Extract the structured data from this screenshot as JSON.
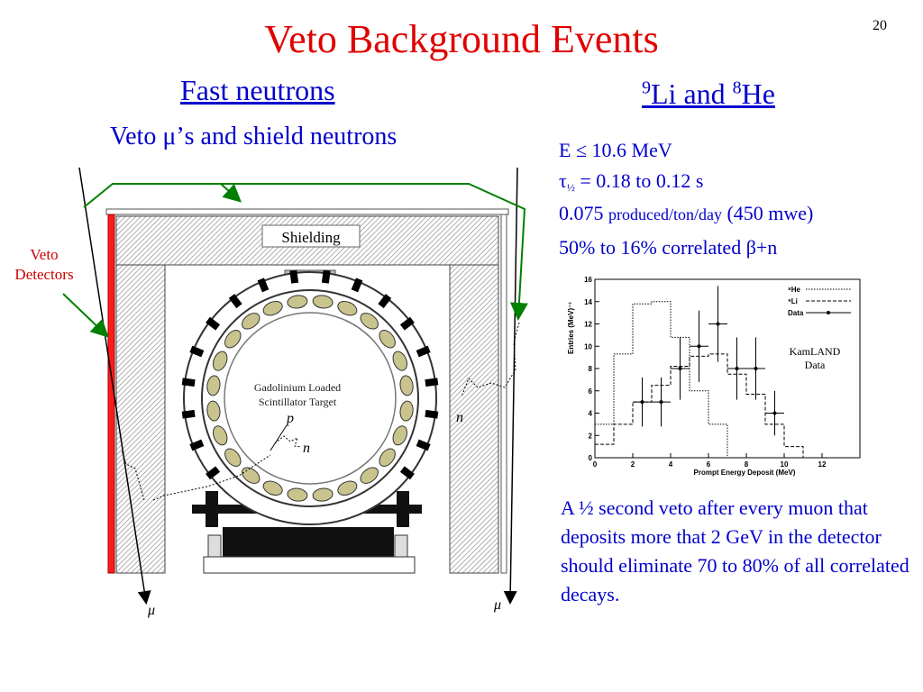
{
  "slide": {
    "title": "Veto Background Events",
    "number": "20"
  },
  "left": {
    "heading": "Fast neutrons",
    "subheading": "Veto μ’s and shield neutrons",
    "veto_detectors_label": [
      "Veto",
      "Detectors"
    ],
    "diagram": {
      "shielding_label": "Shielding",
      "target_label": [
        "Gadolinium Loaded",
        "Scintillator Target"
      ],
      "p_label": "p",
      "n_label": "n",
      "n_outer_label": "n",
      "mu_left": "μ",
      "mu_right": "μ"
    }
  },
  "right": {
    "heading_parts": {
      "sup1": "9",
      "text1": "Li and ",
      "sup2": "8",
      "text2": "He"
    },
    "props": {
      "energy": "E ≤ 10.6 MeV",
      "tau_symbol": "τ",
      "tau_sub": "½",
      "tau_rest": " = 0.18 to 0.12 s",
      "rate_num": "0.075 ",
      "rate_unit": "produced/ton/day",
      "rate_rest": " (450 mwe)",
      "correlated": "50% to 16% correlated β+n"
    },
    "paragraph": "A ½ second veto after every muon that deposits more that 2 GeV in the detector should eliminate 70 to 80% of all correlated decays."
  },
  "chart_data": {
    "type": "line",
    "xlabel": "Prompt Energy Deposit (MeV)",
    "ylabel": "Entries (MeV)⁻¹",
    "xlim": [
      0,
      14
    ],
    "ylim": [
      0,
      16
    ],
    "x_ticks": [
      0,
      2,
      4,
      6,
      8,
      10,
      12
    ],
    "y_ticks": [
      0,
      2,
      4,
      6,
      8,
      10,
      12,
      14,
      16
    ],
    "annotation": [
      "KamLAND",
      "Data"
    ],
    "legend_position": "top-right",
    "series": [
      {
        "name": "⁸He",
        "style": "dotted",
        "bin_edges": [
          0,
          1,
          2,
          3,
          4,
          5,
          6,
          7,
          8,
          9,
          10,
          11,
          12,
          14
        ],
        "values": [
          3.0,
          9.3,
          13.8,
          14.0,
          10.8,
          6.0,
          3.0,
          0,
          0,
          0,
          0,
          0,
          0
        ]
      },
      {
        "name": "⁹Li",
        "style": "dashed",
        "bin_edges": [
          0,
          1,
          2,
          3,
          4,
          5,
          6,
          7,
          8,
          9,
          10,
          11,
          12,
          14
        ],
        "values": [
          1.2,
          3.0,
          5.0,
          6.5,
          8.2,
          9.1,
          9.3,
          7.5,
          5.7,
          3.0,
          1.0,
          0,
          0
        ]
      },
      {
        "name": "Data",
        "style": "points",
        "points": [
          {
            "x": 2.5,
            "y": 5,
            "err": 2.2
          },
          {
            "x": 3.5,
            "y": 5,
            "err": 2.2
          },
          {
            "x": 4.5,
            "y": 8,
            "err": 2.8
          },
          {
            "x": 5.5,
            "y": 10,
            "err": 3.2
          },
          {
            "x": 6.5,
            "y": 12,
            "err": 3.4
          },
          {
            "x": 7.5,
            "y": 8,
            "err": 2.8
          },
          {
            "x": 8.5,
            "y": 8,
            "err": 2.8
          },
          {
            "x": 9.5,
            "y": 4,
            "err": 2.0
          }
        ]
      }
    ]
  }
}
